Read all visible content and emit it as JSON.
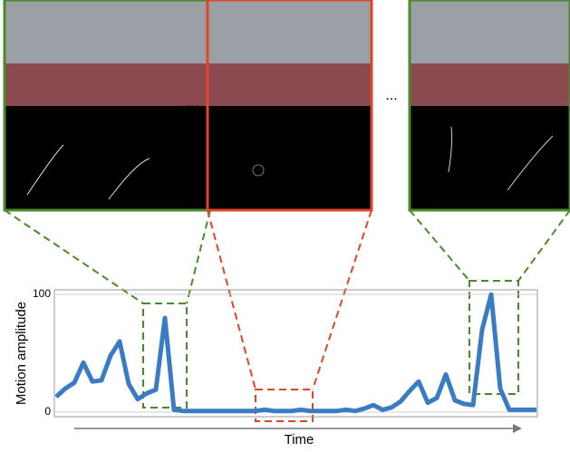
{
  "chart_data": {
    "type": "line",
    "ylabel": "Motion amplitude",
    "xlabel": "Time",
    "ellipses": [
      "...",
      "..."
    ],
    "color": "#3a7cc4",
    "ylim": [
      0,
      100
    ],
    "yticks": [
      0,
      100
    ],
    "grid": true,
    "values": [
      13,
      20,
      25,
      42,
      26,
      27,
      48,
      60,
      24,
      11,
      16,
      19,
      80,
      2,
      1,
      1,
      1,
      1,
      1,
      1,
      1,
      1,
      1,
      2,
      1,
      1,
      1,
      2,
      1,
      1,
      1,
      1,
      2,
      1,
      3,
      6,
      2,
      4,
      9,
      18,
      26,
      8,
      12,
      32,
      10,
      7,
      6,
      70,
      100,
      20,
      2,
      2,
      2,
      2
    ]
  }
}
